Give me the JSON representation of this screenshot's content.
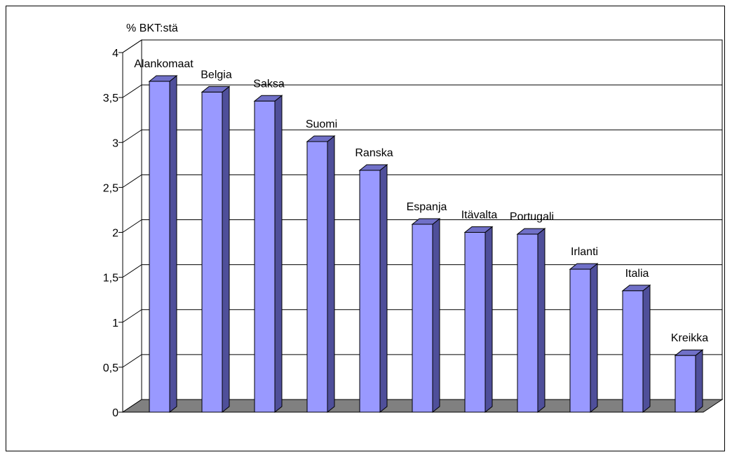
{
  "chart_data": {
    "type": "bar",
    "ylabel": "% BKT:stä",
    "categories": [
      "Alankomaat",
      "Belgia",
      "Saksa",
      "Suomi",
      "Ranska",
      "Espanja",
      "Itävalta",
      "Portugali",
      "Irlanti",
      "Italia",
      "Kreikka"
    ],
    "values": [
      3.68,
      3.56,
      3.46,
      3.01,
      2.69,
      2.09,
      2.0,
      1.98,
      1.59,
      1.35,
      0.63
    ],
    "ylim": [
      0,
      4
    ],
    "yticks": [
      "0",
      "0,5",
      "1",
      "1,5",
      "2",
      "2,5",
      "3",
      "3,5",
      "4"
    ],
    "grid": true,
    "style": "3d-column",
    "colors": {
      "bar_front": "#9999ff",
      "bar_side": "#4f4f9a",
      "bar_top": "#7070c8",
      "floor": "#808080",
      "grid": "#000000"
    }
  }
}
